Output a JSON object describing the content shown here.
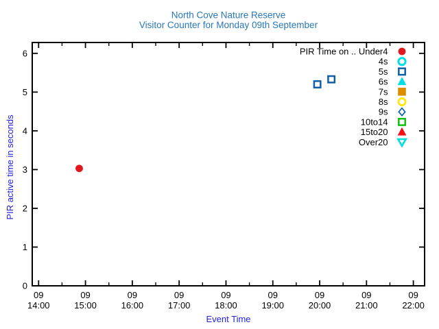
{
  "chart_data": {
    "type": "scatter",
    "title": "North Cove Nature Reserve",
    "subtitle": "Visitor Counter for Monday 09th September",
    "xlabel": "Event Time",
    "ylabel": "PIR active time in seconds",
    "grid": false,
    "legend_position": "top-right-inside",
    "colors": {
      "title": "#2878b8",
      "axis_label": "#2222dd",
      "axis": "#000000",
      "tick_label": "#000000",
      "legend_text": "#000000",
      "background": "#ffffff"
    },
    "x_axis": {
      "min_hours": 13.864,
      "max_hours": 22.24,
      "major_ticks": [
        {
          "hours": 14,
          "line1": "09",
          "line2": "14:00"
        },
        {
          "hours": 15,
          "line1": "09",
          "line2": "15:00"
        },
        {
          "hours": 16,
          "line1": "09",
          "line2": "16:00"
        },
        {
          "hours": 17,
          "line1": "09",
          "line2": "17:00"
        },
        {
          "hours": 18,
          "line1": "09",
          "line2": "18:00"
        },
        {
          "hours": 19,
          "line1": "09",
          "line2": "19:00"
        },
        {
          "hours": 20,
          "line1": "09",
          "line2": "20:00"
        },
        {
          "hours": 21,
          "line1": "09",
          "line2": "21:00"
        },
        {
          "hours": 22,
          "line1": "09",
          "line2": "22:00"
        }
      ],
      "minor_ticks_hours": [
        14.5,
        15.5,
        16.5,
        17.5,
        18.5,
        19.5,
        20.5,
        21.5
      ]
    },
    "y_axis": {
      "min": 0,
      "max_display": 6.28,
      "ticks": [
        0,
        1,
        2,
        3,
        4,
        5,
        6
      ]
    },
    "series": [
      {
        "name": "PIR Time on .. Under4",
        "marker": "circle",
        "fill": true,
        "color": "#e0181e",
        "points": [
          {
            "x_hours": 14.867,
            "time": "09 14:52",
            "y": 3.03
          }
        ]
      },
      {
        "name": "4s",
        "marker": "circle",
        "fill": false,
        "color": "#00e0e4",
        "points": []
      },
      {
        "name": "5s",
        "marker": "square",
        "fill": false,
        "color": "#1060a8",
        "points": [
          {
            "x_hours": 19.95,
            "time": "09 19:57",
            "y": 5.2
          },
          {
            "x_hours": 20.25,
            "time": "09 20:15",
            "y": 5.33
          }
        ]
      },
      {
        "name": "6s",
        "marker": "triangle-up",
        "fill": true,
        "color": "#00e0e4",
        "points": []
      },
      {
        "name": "7s",
        "marker": "square",
        "fill": true,
        "color": "#d98f00",
        "points": []
      },
      {
        "name": "8s",
        "marker": "circle",
        "fill": false,
        "color": "#ffe81a",
        "points": []
      },
      {
        "name": "9s",
        "marker": "diamond",
        "fill": false,
        "color": "#1060a8",
        "points": []
      },
      {
        "name": "10to14",
        "marker": "square",
        "fill": false,
        "color": "#0ec20e",
        "points": []
      },
      {
        "name": "15to20",
        "marker": "triangle-up",
        "fill": true,
        "color": "#f31018",
        "points": []
      },
      {
        "name": "Over20",
        "marker": "triangle-down",
        "fill": false,
        "color": "#00e0e4",
        "points": []
      }
    ]
  }
}
